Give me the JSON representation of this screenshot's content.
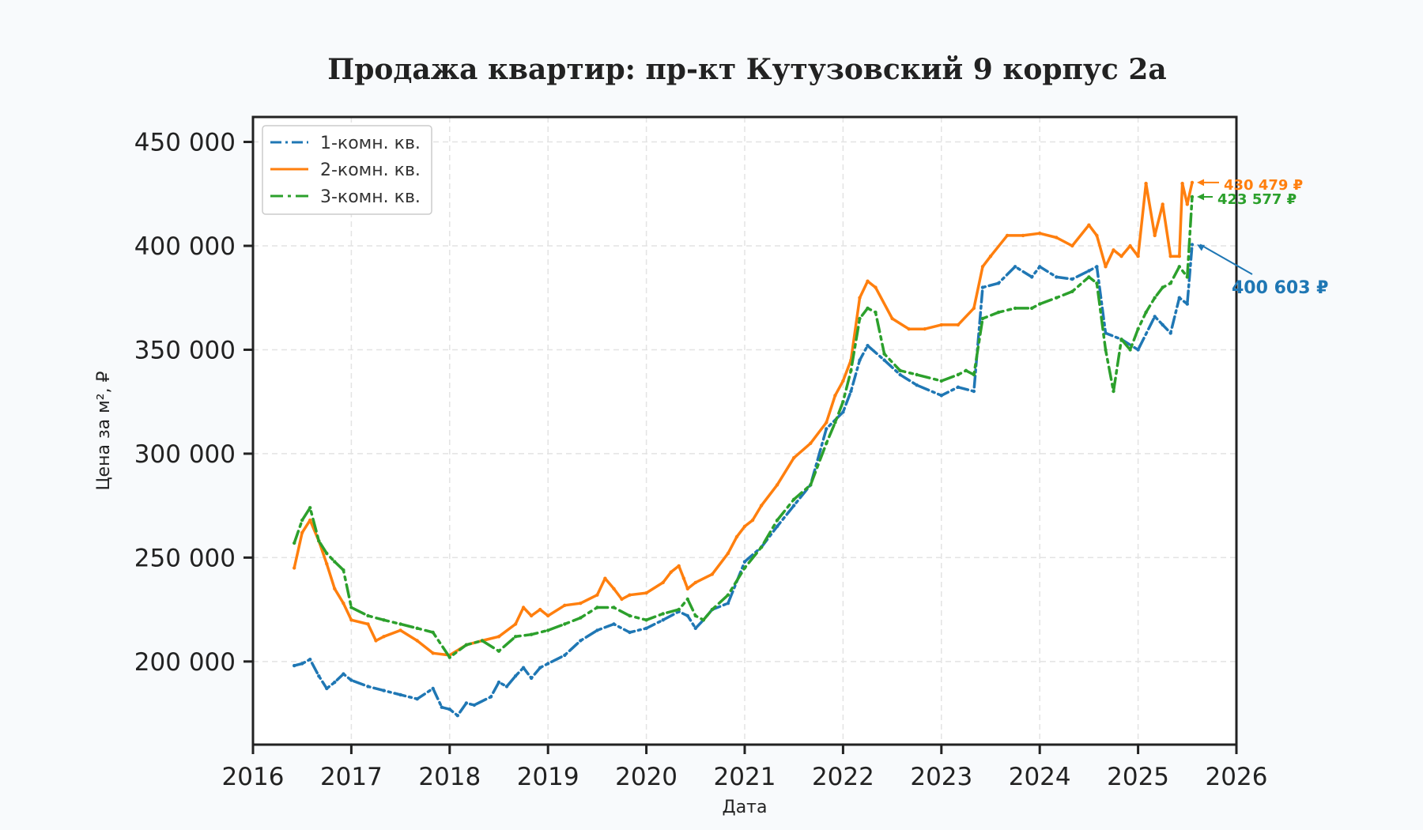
{
  "chart_data": {
    "type": "line",
    "title": "Продажа квартир: пр-кт Кутузовский 9 корпус 2а",
    "xlabel": "Дата",
    "ylabel": "Цена за м², ₽",
    "xlim": [
      2016,
      2026
    ],
    "ylim": [
      160000,
      462000
    ],
    "grid": true,
    "legend_position": "top-left",
    "x_ticks": [
      "2016",
      "2017",
      "2018",
      "2019",
      "2020",
      "2021",
      "2022",
      "2023",
      "2024",
      "2025",
      "2026"
    ],
    "y_ticks": [
      "200 000",
      "250 000",
      "300 000",
      "350 000",
      "400 000",
      "450 000"
    ],
    "series": [
      {
        "name": "1-комн. кв.",
        "color": "#1f77b4",
        "style": "dashed-dotted-markers",
        "x": [
          2016.42,
          2016.5,
          2016.58,
          2016.67,
          2016.75,
          2016.83,
          2016.92,
          2017.0,
          2017.17,
          2017.33,
          2017.5,
          2017.67,
          2017.83,
          2017.92,
          2018.0,
          2018.08,
          2018.17,
          2018.25,
          2018.42,
          2018.5,
          2018.58,
          2018.67,
          2018.75,
          2018.83,
          2018.92,
          2019.0,
          2019.17,
          2019.33,
          2019.5,
          2019.67,
          2019.83,
          2020.0,
          2020.17,
          2020.33,
          2020.42,
          2020.5,
          2020.58,
          2020.67,
          2020.83,
          2021.0,
          2021.17,
          2021.33,
          2021.5,
          2021.67,
          2021.83,
          2022.0,
          2022.08,
          2022.17,
          2022.25,
          2022.42,
          2022.58,
          2022.75,
          2023.0,
          2023.17,
          2023.33,
          2023.42,
          2023.58,
          2023.75,
          2023.92,
          2024.0,
          2024.17,
          2024.33,
          2024.5,
          2024.58,
          2024.67,
          2024.83,
          2025.0,
          2025.17,
          2025.25,
          2025.33,
          2025.42,
          2025.5,
          2025.55
        ],
        "values": [
          198000,
          199000,
          201000,
          193000,
          187000,
          190000,
          194000,
          191000,
          188000,
          186000,
          184000,
          182000,
          187000,
          178000,
          177000,
          174000,
          180000,
          179000,
          183000,
          190000,
          188000,
          193000,
          197000,
          192000,
          197000,
          199000,
          203000,
          210000,
          215000,
          218000,
          214000,
          216000,
          220000,
          224000,
          222000,
          216000,
          220000,
          225000,
          228000,
          248000,
          255000,
          265000,
          275000,
          285000,
          312000,
          320000,
          330000,
          345000,
          352000,
          345000,
          338000,
          333000,
          328000,
          332000,
          330000,
          380000,
          382000,
          390000,
          385000,
          390000,
          385000,
          384000,
          388000,
          390000,
          358000,
          355000,
          350000,
          366000,
          362000,
          358000,
          375000,
          372000,
          400603
        ]
      },
      {
        "name": "2-комн. кв.",
        "color": "#ff7f0e",
        "style": "solid",
        "x": [
          2016.42,
          2016.5,
          2016.58,
          2016.67,
          2016.75,
          2016.83,
          2016.92,
          2017.0,
          2017.17,
          2017.25,
          2017.33,
          2017.5,
          2017.67,
          2017.83,
          2018.0,
          2018.17,
          2018.33,
          2018.5,
          2018.67,
          2018.75,
          2018.83,
          2018.92,
          2019.0,
          2019.17,
          2019.33,
          2019.5,
          2019.58,
          2019.67,
          2019.75,
          2019.83,
          2020.0,
          2020.17,
          2020.25,
          2020.33,
          2020.38,
          2020.42,
          2020.5,
          2020.67,
          2020.83,
          2020.92,
          2021.0,
          2021.08,
          2021.17,
          2021.33,
          2021.5,
          2021.67,
          2021.83,
          2021.92,
          2022.0,
          2022.08,
          2022.17,
          2022.25,
          2022.33,
          2022.5,
          2022.67,
          2022.83,
          2023.0,
          2023.17,
          2023.33,
          2023.42,
          2023.5,
          2023.67,
          2023.83,
          2024.0,
          2024.17,
          2024.33,
          2024.5,
          2024.58,
          2024.67,
          2024.75,
          2024.83,
          2024.92,
          2025.0,
          2025.08,
          2025.17,
          2025.25,
          2025.33,
          2025.42,
          2025.45,
          2025.5,
          2025.55
        ],
        "values": [
          245000,
          262000,
          268000,
          258000,
          247000,
          235000,
          228000,
          220000,
          218000,
          210000,
          212000,
          215000,
          210000,
          204000,
          203000,
          208000,
          210000,
          212000,
          218000,
          226000,
          222000,
          225000,
          222000,
          227000,
          228000,
          232000,
          240000,
          235000,
          230000,
          232000,
          233000,
          238000,
          243000,
          246000,
          240000,
          235000,
          238000,
          242000,
          252000,
          260000,
          265000,
          268000,
          275000,
          285000,
          298000,
          305000,
          315000,
          328000,
          335000,
          345000,
          375000,
          383000,
          380000,
          365000,
          360000,
          360000,
          362000,
          362000,
          370000,
          390000,
          395000,
          405000,
          405000,
          406000,
          404000,
          400000,
          410000,
          405000,
          390000,
          398000,
          395000,
          400000,
          395000,
          430000,
          405000,
          420000,
          395000,
          395000,
          430000,
          420000,
          430479
        ]
      },
      {
        "name": "3-комн. кв.",
        "color": "#2ca02c",
        "style": "dashdot",
        "x": [
          2016.42,
          2016.5,
          2016.58,
          2016.67,
          2016.75,
          2016.83,
          2016.92,
          2017.0,
          2017.17,
          2017.33,
          2017.5,
          2017.67,
          2017.83,
          2018.0,
          2018.17,
          2018.33,
          2018.5,
          2018.67,
          2018.83,
          2019.0,
          2019.17,
          2019.33,
          2019.5,
          2019.67,
          2019.83,
          2020.0,
          2020.17,
          2020.33,
          2020.42,
          2020.5,
          2020.58,
          2020.67,
          2020.83,
          2021.0,
          2021.17,
          2021.33,
          2021.5,
          2021.67,
          2021.83,
          2021.92,
          2022.0,
          2022.08,
          2022.17,
          2022.25,
          2022.33,
          2022.42,
          2022.58,
          2022.75,
          2023.0,
          2023.17,
          2023.25,
          2023.33,
          2023.42,
          2023.58,
          2023.75,
          2023.92,
          2024.0,
          2024.17,
          2024.33,
          2024.5,
          2024.58,
          2024.67,
          2024.75,
          2024.83,
          2024.92,
          2025.0,
          2025.08,
          2025.17,
          2025.25,
          2025.33,
          2025.42,
          2025.5,
          2025.55
        ],
        "values": [
          257000,
          268000,
          274000,
          258000,
          252000,
          248000,
          244000,
          226000,
          222000,
          220000,
          218000,
          216000,
          214000,
          202000,
          208000,
          210000,
          205000,
          212000,
          213000,
          215000,
          218000,
          221000,
          226000,
          226000,
          222000,
          220000,
          223000,
          225000,
          230000,
          222000,
          220000,
          225000,
          232000,
          245000,
          255000,
          268000,
          278000,
          285000,
          305000,
          315000,
          325000,
          340000,
          365000,
          370000,
          368000,
          348000,
          340000,
          338000,
          335000,
          338000,
          340000,
          338000,
          365000,
          368000,
          370000,
          370000,
          372000,
          375000,
          378000,
          385000,
          382000,
          350000,
          330000,
          355000,
          350000,
          360000,
          368000,
          375000,
          380000,
          382000,
          390000,
          385000,
          423577
        ]
      }
    ],
    "annotations": [
      {
        "text": "430 479 ₽",
        "color": "#ff7f0e",
        "x": 2025.55,
        "y": 430479
      },
      {
        "text": "423 577 ₽",
        "color": "#2ca02c",
        "x": 2025.55,
        "y": 423577
      },
      {
        "text": "400 603 ₽",
        "color": "#1f77b4",
        "x": 2025.55,
        "y": 400603
      }
    ]
  }
}
